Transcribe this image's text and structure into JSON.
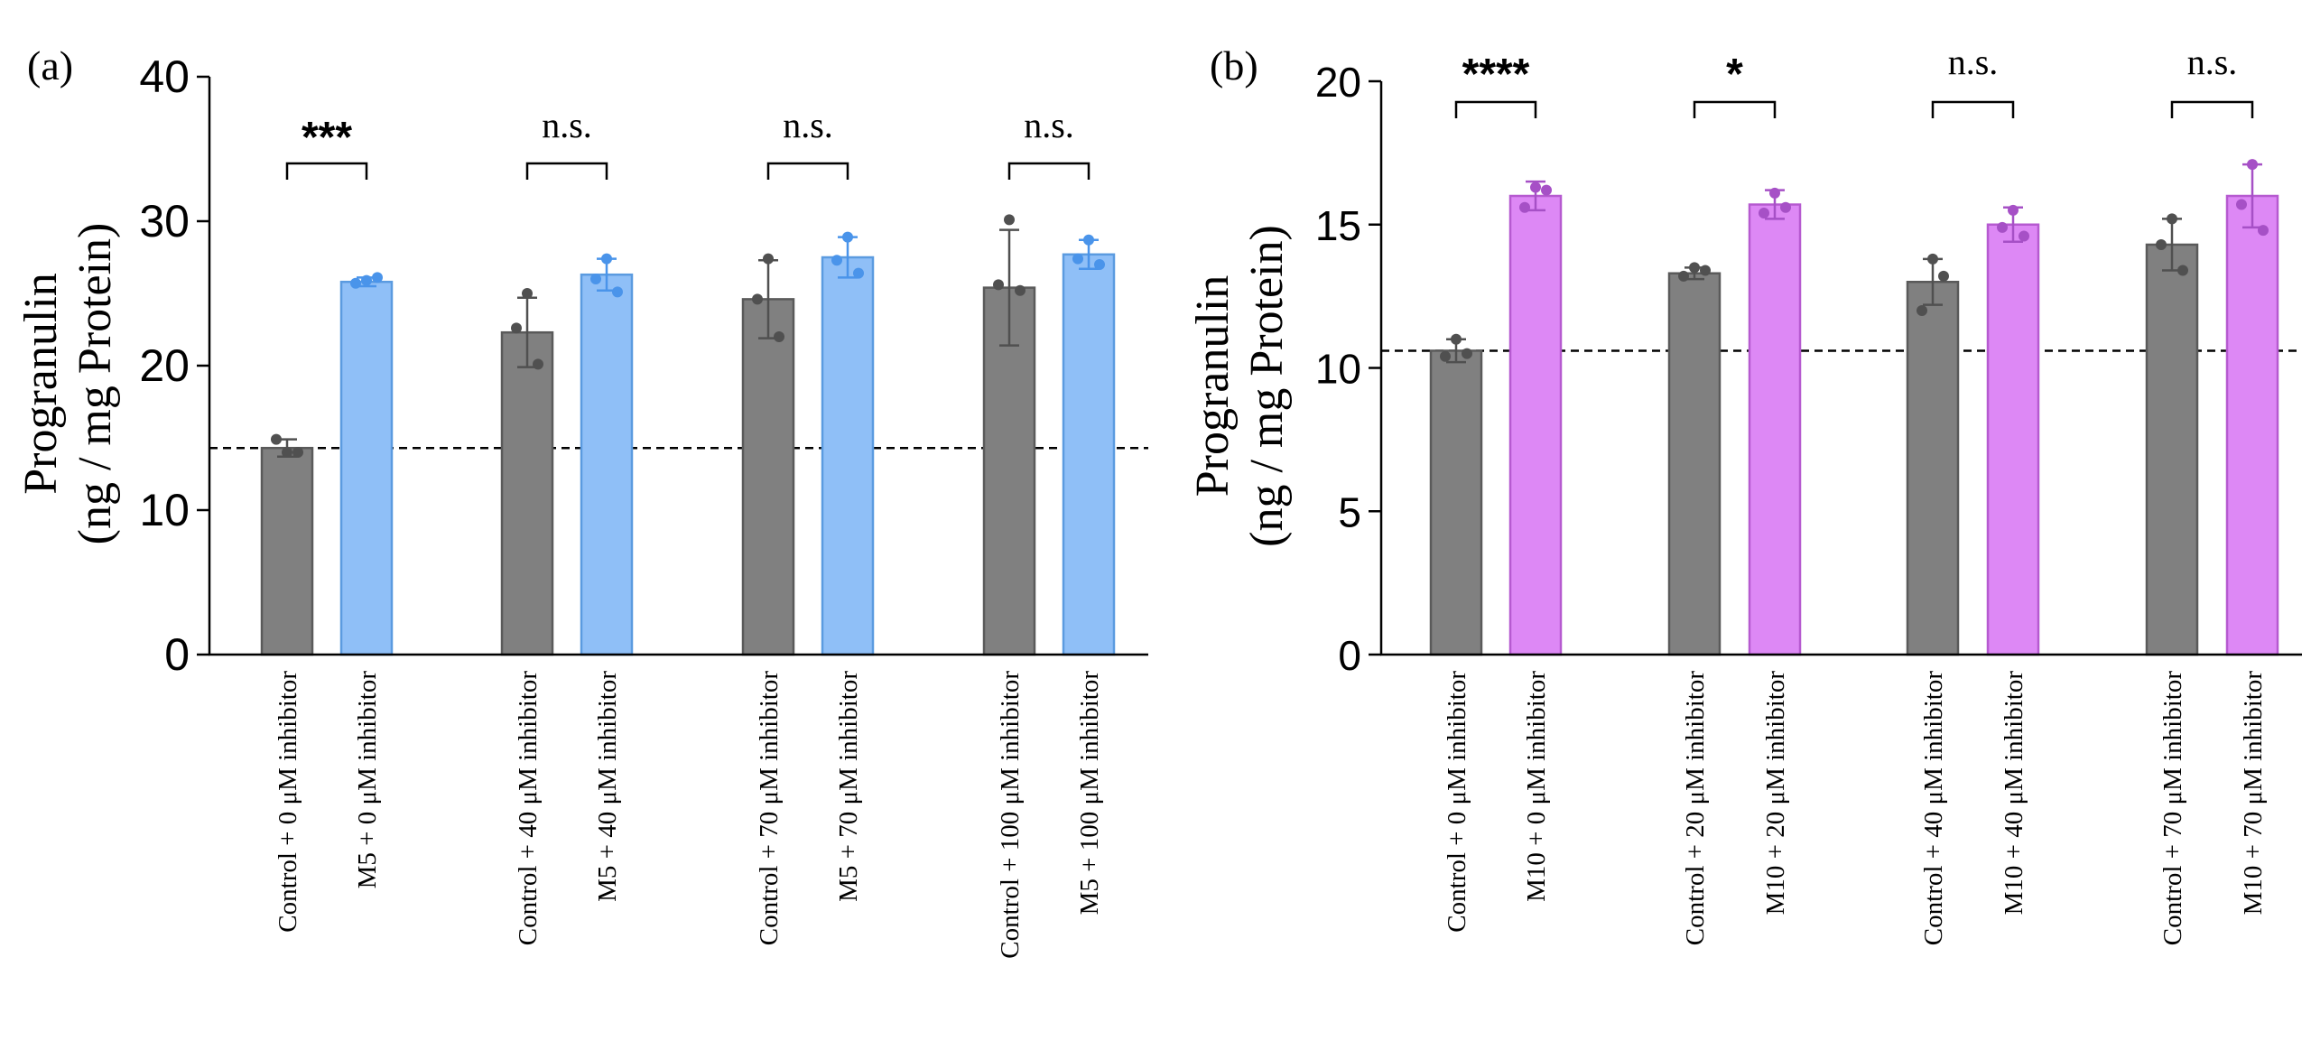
{
  "chart_data": [
    {
      "type": "bar",
      "panel_label": "(a)",
      "ylabel_lines": [
        "Progranulin",
        "(ng /  mg Protein)"
      ],
      "ylim": [
        0,
        40
      ],
      "yticks": [
        "0",
        "10",
        "20",
        "30",
        "40"
      ],
      "categories": [
        "Control + 0 μM inhibitor",
        "M5 + 0 μM inhibitor",
        "Control + 40 μM inhibitor",
        "M5 + 40 μM inhibitor",
        "Control + 70 μM inhibitor",
        "M5 + 70 μM inhibitor",
        "Control + 100 μM inhibitor",
        "M5 + 100 μM inhibitor"
      ],
      "values": [
        14.3,
        25.8,
        22.3,
        26.3,
        24.6,
        27.5,
        25.4,
        27.7
      ],
      "errors": [
        0.6,
        0.3,
        2.4,
        1.1,
        2.7,
        1.4,
        4.0,
        1.0
      ],
      "points": [
        [
          14.0,
          14.9,
          14.0
        ],
        [
          25.9,
          25.7,
          26.1
        ],
        [
          25.0,
          22.6,
          20.1
        ],
        [
          27.4,
          26.0,
          25.1
        ],
        [
          27.4,
          24.6,
          22.0
        ],
        [
          28.9,
          27.3,
          26.4
        ],
        [
          30.1,
          25.6,
          25.2
        ],
        [
          28.7,
          27.4,
          27.0
        ]
      ],
      "bar_colors": [
        "#808080",
        "#8fbff7",
        "#808080",
        "#8fbff7",
        "#808080",
        "#8fbff7",
        "#808080",
        "#8fbff7"
      ],
      "edge_colors": [
        "#5a5a5a",
        "#5b9be0",
        "#5a5a5a",
        "#5b9be0",
        "#5a5a5a",
        "#5b9be0",
        "#5a5a5a",
        "#5b9be0"
      ],
      "point_colors": [
        "#505050",
        "#4a94ea",
        "#505050",
        "#4a94ea",
        "#505050",
        "#4a94ea",
        "#505050",
        "#4a94ea"
      ],
      "reference_line": 14.3,
      "significance": [
        "***",
        "n.s.",
        "n.s.",
        "n.s."
      ]
    },
    {
      "type": "bar",
      "panel_label": "(b)",
      "ylabel_lines": [
        "Progranulin",
        "(ng /  mg Protein)"
      ],
      "ylim": [
        0,
        20
      ],
      "yticks": [
        "0",
        "5",
        "10",
        "15",
        "20"
      ],
      "categories": [
        "Control + 0 μM inhibitor",
        "M10 + 0 μM inhibitor",
        "Control + 20 μM inhibitor",
        "M10 + 20 μM inhibitor",
        "Control + 40 μM inhibitor",
        "M10 + 40 μM inhibitor",
        "Control + 70 μM inhibitor",
        "M10 + 70 μM inhibitor"
      ],
      "values": [
        10.6,
        16.0,
        13.3,
        15.7,
        13.0,
        15.0,
        14.3,
        16.0
      ],
      "errors": [
        0.4,
        0.5,
        0.2,
        0.5,
        0.8,
        0.6,
        0.9,
        1.1
      ],
      "points": [
        [
          11.0,
          10.4,
          10.5
        ],
        [
          16.3,
          15.6,
          16.2
        ],
        [
          13.5,
          13.2,
          13.4
        ],
        [
          16.1,
          15.4,
          15.6
        ],
        [
          13.8,
          12.0,
          13.2
        ],
        [
          15.5,
          14.9,
          14.6
        ],
        [
          15.2,
          14.3,
          13.4
        ],
        [
          17.1,
          15.7,
          14.8
        ]
      ],
      "bar_colors": [
        "#808080",
        "#dd88f5",
        "#808080",
        "#dd88f5",
        "#808080",
        "#dd88f5",
        "#808080",
        "#dd88f5"
      ],
      "edge_colors": [
        "#5a5a5a",
        "#b65ad0",
        "#5a5a5a",
        "#b65ad0",
        "#5a5a5a",
        "#b65ad0",
        "#5a5a5a",
        "#b65ad0"
      ],
      "point_colors": [
        "#505050",
        "#a650c6",
        "#505050",
        "#a650c6",
        "#505050",
        "#a650c6",
        "#505050",
        "#a650c6"
      ],
      "reference_line": 10.6,
      "significance": [
        "****",
        "*",
        "n.s.",
        "n.s."
      ]
    }
  ]
}
